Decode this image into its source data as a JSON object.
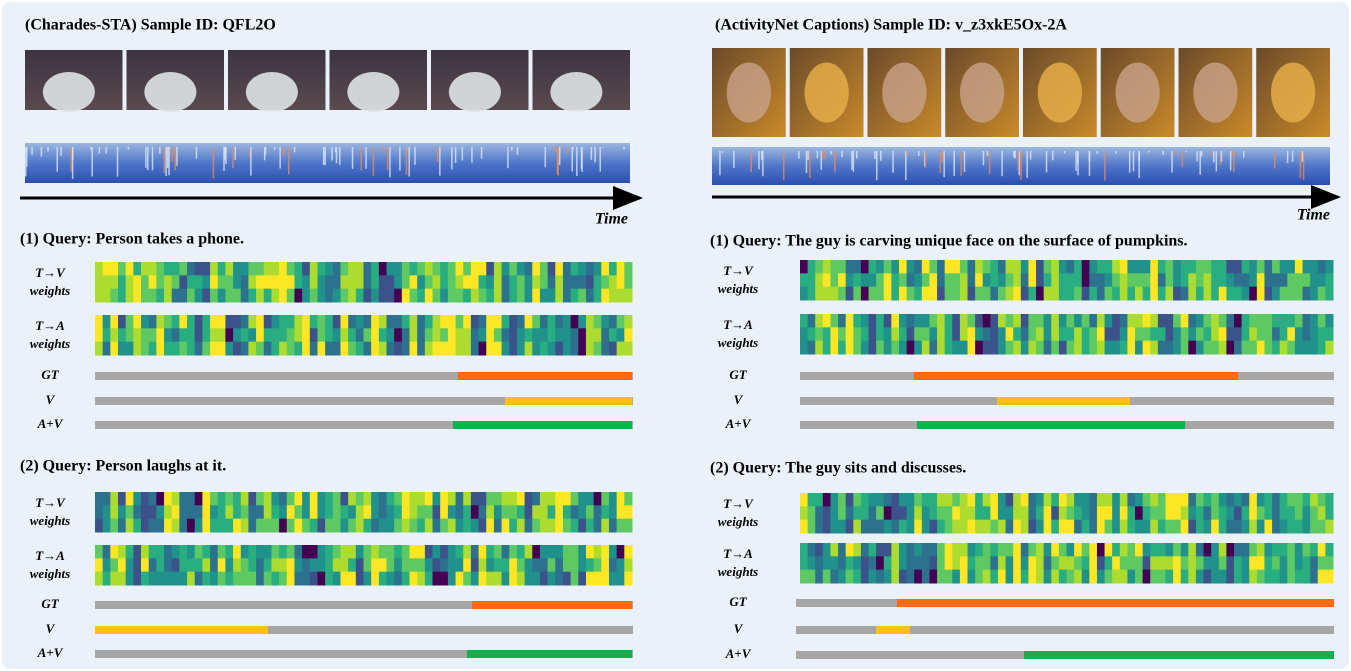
{
  "panels": [
    {
      "title": "(Charades-STA) Sample ID: QFL2O",
      "time_label": "Time",
      "queries": [
        {
          "text": "(1) Query: Person takes a phone.",
          "rows": [
            [
              "T→V",
              "weights"
            ],
            [
              "T→A",
              "weights"
            ],
            [
              "GT"
            ],
            [
              "V"
            ],
            [
              "A+V"
            ]
          ]
        },
        {
          "text": "(2) Query: Person laughs at it.",
          "rows": [
            [
              "T→V",
              "weights"
            ],
            [
              "T→A",
              "weights"
            ],
            [
              "GT"
            ],
            [
              "V"
            ],
            [
              "A+V"
            ]
          ]
        }
      ]
    },
    {
      "title": "(ActivityNet Captions) Sample ID: v_z3xkE5Ox-2A",
      "time_label": "Time",
      "queries": [
        {
          "text": "(1) Query: The guy is carving unique face on the surface of pumpkins.",
          "rows": [
            [
              "T→V",
              "weights"
            ],
            [
              "T→A",
              "weights"
            ],
            [
              "GT"
            ],
            [
              "V"
            ],
            [
              "A+V"
            ]
          ]
        },
        {
          "text": "(2) Query: The guy sits and discusses.",
          "rows": [
            [
              "T→V",
              "weights"
            ],
            [
              "T→A",
              "weights"
            ],
            [
              "GT"
            ],
            [
              "V"
            ],
            [
              "A+V"
            ]
          ]
        }
      ]
    }
  ]
}
